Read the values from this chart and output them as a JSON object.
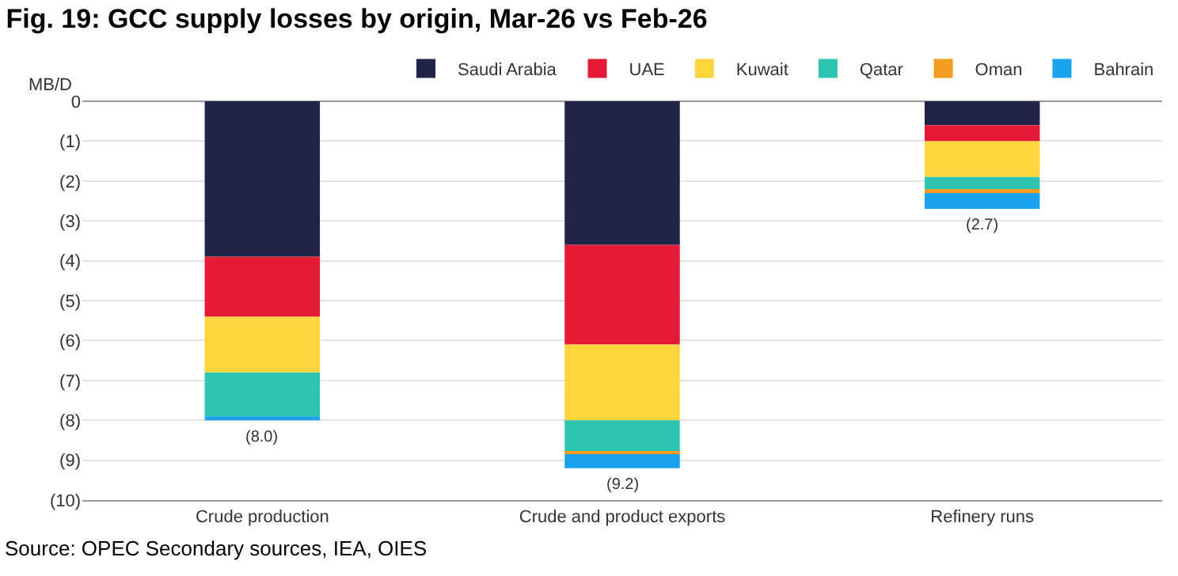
{
  "chart_data": {
    "type": "bar",
    "title": "Fig. 19: GCC supply losses by origin, Mar-26 vs Feb-26",
    "ylabel": "MB/D",
    "categories": [
      "Crude production",
      "Crude and product exports",
      "Refinery runs"
    ],
    "stacked": true,
    "series": [
      {
        "name": "Saudi Arabia",
        "color": "#1f2448",
        "values": [
          -3.9,
          -3.6,
          -0.6
        ]
      },
      {
        "name": "UAE",
        "color": "#e31b35",
        "values": [
          -1.5,
          -2.5,
          -0.4
        ]
      },
      {
        "name": "Kuwait",
        "color": "#fdd53e",
        "values": [
          -1.4,
          -1.9,
          -0.9
        ]
      },
      {
        "name": "Qatar",
        "color": "#2ec4b2",
        "values": [
          -1.1,
          -0.8,
          -0.3
        ]
      },
      {
        "name": "Oman",
        "color": "#f39c1f",
        "values": [
          0,
          -0.05,
          -0.1
        ]
      },
      {
        "name": "Bahrain",
        "color": "#1aa3ec",
        "values": [
          -0.1,
          -0.35,
          -0.4
        ]
      }
    ],
    "totals": [
      "(8.0)",
      "(9.2)",
      "(2.7)"
    ],
    "ylim": [
      -10,
      0
    ],
    "yticks": [
      {
        "value": 0,
        "label": "0"
      },
      {
        "value": -1,
        "label": "(1)"
      },
      {
        "value": -2,
        "label": "(2)"
      },
      {
        "value": -3,
        "label": "(3)"
      },
      {
        "value": -4,
        "label": "(4)"
      },
      {
        "value": -5,
        "label": "(5)"
      },
      {
        "value": -6,
        "label": "(6)"
      },
      {
        "value": -7,
        "label": "(7)"
      },
      {
        "value": -8,
        "label": "(8)"
      },
      {
        "value": -9,
        "label": "(9)"
      },
      {
        "value": -10,
        "label": "(10)"
      }
    ],
    "grid": "y",
    "legend": "top right",
    "annotations": [
      "Source: OPEC Secondary sources, IEA, OIES"
    ]
  }
}
